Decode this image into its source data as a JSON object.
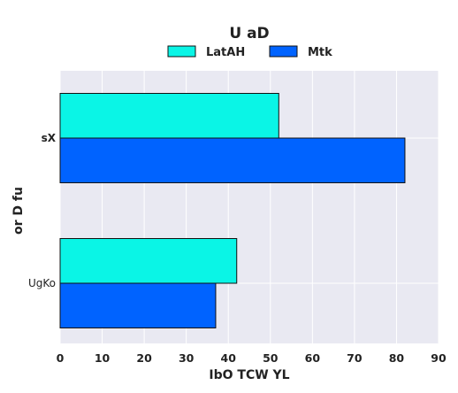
{
  "chart_data": {
    "type": "bar",
    "orientation": "horizontal",
    "title": "U  aD",
    "xlabel": "IbO TCW YL",
    "ylabel": "or D fu",
    "categories": [
      "sX",
      "UgKo"
    ],
    "series": [
      {
        "name": "LatAH",
        "values": [
          52,
          42
        ],
        "color": "#0af5e6"
      },
      {
        "name": "Mtk",
        "values": [
          82,
          37
        ],
        "color": "#0063ff"
      }
    ],
    "xlim": [
      0,
      90
    ],
    "xticks": [
      0,
      10,
      20,
      30,
      40,
      50,
      60,
      70,
      80,
      90
    ],
    "grid": true,
    "legend_position": "top-center",
    "background": "#e9e9f2"
  }
}
